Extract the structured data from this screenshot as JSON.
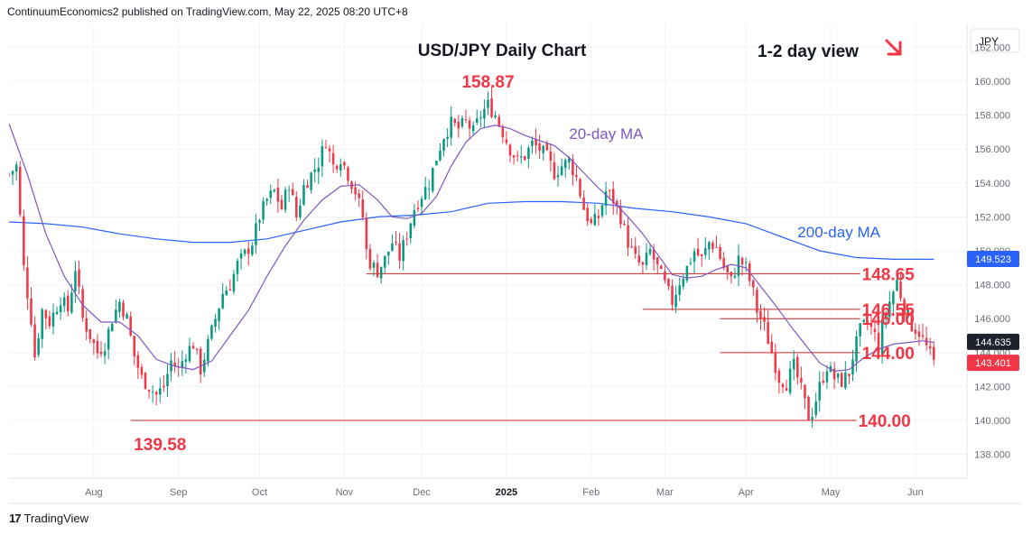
{
  "header": {
    "publisher": "ContinuumEconomics2 published on TradingView.com, May 22, 2025 08:20 UTC+8"
  },
  "footer": {
    "brand": "TradingView",
    "logo_text": "17"
  },
  "colors": {
    "up": "#089981",
    "down": "#f23645",
    "ma20": "#7e57c2",
    "ma200": "#2962ff",
    "level_text": "#f23645",
    "level_line": "#e06a6a",
    "arrow": "#f23645",
    "grid": "#f0f3fa",
    "axis_text": "#6a6d78"
  },
  "chart_data": {
    "type": "candlestick",
    "title": "USD/JPY Daily Chart",
    "subtitle": "1-2 day view",
    "view_arrow": "down-right-arrow",
    "currency": "JPY",
    "ylim": [
      136.6,
      163.4
    ],
    "yticks": [
      138,
      140,
      142,
      144,
      146,
      148,
      150,
      152,
      154,
      156,
      158,
      160,
      162
    ],
    "ytick_labels": [
      "138.000",
      "140.000",
      "142.000",
      "144.000",
      "146.000",
      "148.000",
      "150.000",
      "152.000",
      "154.000",
      "156.000",
      "158.000",
      "160.000",
      "162.000"
    ],
    "xticks": [
      {
        "label": "Aug",
        "x": 23
      },
      {
        "label": "Sep",
        "x": 46
      },
      {
        "label": "Oct",
        "x": 68
      },
      {
        "label": "Nov",
        "x": 91
      },
      {
        "label": "Dec",
        "x": 112
      },
      {
        "label": "2025",
        "x": 135
      },
      {
        "label": "Feb",
        "x": 158
      },
      {
        "label": "Mar",
        "x": 178
      },
      {
        "label": "Apr",
        "x": 200
      },
      {
        "label": "May",
        "x": 223
      },
      {
        "label": "Jun",
        "x": 246
      }
    ],
    "xlim": [
      0,
      260
    ],
    "price_labels": [
      {
        "name": "ma200-price-tag",
        "value": "149.523",
        "y": 149.523,
        "color": "#2962ff"
      },
      {
        "name": "ma20-price-tag",
        "value": "144.635",
        "y": 144.635,
        "color": "#1e222d"
      },
      {
        "name": "last-price-tag",
        "value": "143.401",
        "y": 143.401,
        "color": "#f23645"
      }
    ],
    "levels": [
      {
        "label": "148.65",
        "value": 148.65,
        "x0": 97,
        "x1": 231
      },
      {
        "label": "146.55",
        "value": 146.55,
        "x0": 172,
        "x1": 231
      },
      {
        "label": "146.00",
        "value": 146.0,
        "x0": 193,
        "x1": 231
      },
      {
        "label": "144.00",
        "value": 144.0,
        "x0": 193,
        "x1": 231
      },
      {
        "label": "140.00",
        "value": 140.0,
        "x0": 33,
        "x1": 230
      }
    ],
    "annotations": [
      {
        "label": "158.87",
        "value": 158.87,
        "x": 130
      },
      {
        "label": "139.58",
        "value": 139.58,
        "x": 41
      },
      {
        "label": "20-day MA",
        "x": 152,
        "value": 156.6
      },
      {
        "label": "200-day MA",
        "x": 214,
        "value": 150.8
      }
    ],
    "ohlc_knots": [
      [
        0,
        154.5
      ],
      [
        2,
        155.0
      ],
      [
        4,
        149.0
      ],
      [
        6,
        146.0
      ],
      [
        7,
        143.8
      ],
      [
        9,
        146.5
      ],
      [
        11,
        145.8
      ],
      [
        14,
        147.2
      ],
      [
        16,
        146.5
      ],
      [
        18,
        149.0
      ],
      [
        20,
        146.0
      ],
      [
        22,
        145.0
      ],
      [
        24,
        144.0
      ],
      [
        26,
        144.5
      ],
      [
        28,
        146.0
      ],
      [
        30,
        147.0
      ],
      [
        32,
        146.0
      ],
      [
        34,
        143.8
      ],
      [
        36,
        142.5
      ],
      [
        38,
        142.0
      ],
      [
        40,
        141.5
      ],
      [
        42,
        142.0
      ],
      [
        44,
        143.5
      ],
      [
        46,
        143.0
      ],
      [
        48,
        144.0
      ],
      [
        50,
        144.5
      ],
      [
        52,
        143.0
      ],
      [
        54,
        144.5
      ],
      [
        56,
        146.0
      ],
      [
        58,
        147.5
      ],
      [
        60,
        148.0
      ],
      [
        62,
        149.2
      ],
      [
        64,
        149.8
      ],
      [
        66,
        150.5
      ],
      [
        68,
        152.0
      ],
      [
        70,
        153.0
      ],
      [
        72,
        153.5
      ],
      [
        74,
        152.5
      ],
      [
        76,
        154.0
      ],
      [
        78,
        152.0
      ],
      [
        80,
        153.8
      ],
      [
        82,
        154.5
      ],
      [
        84,
        155.2
      ],
      [
        86,
        156.5
      ],
      [
        88,
        155.0
      ],
      [
        90,
        155.5
      ],
      [
        92,
        154.5
      ],
      [
        94,
        153.5
      ],
      [
        96,
        152.0
      ],
      [
        97,
        150.0
      ],
      [
        98,
        149.3
      ],
      [
        100,
        148.8
      ],
      [
        102,
        149.5
      ],
      [
        104,
        150.5
      ],
      [
        106,
        149.6
      ],
      [
        108,
        151.0
      ],
      [
        110,
        152.5
      ],
      [
        112,
        153.3
      ],
      [
        114,
        154.0
      ],
      [
        116,
        155.5
      ],
      [
        118,
        156.8
      ],
      [
        120,
        157.5
      ],
      [
        122,
        157.2
      ],
      [
        124,
        157.6
      ],
      [
        126,
        157.0
      ],
      [
        128,
        158.0
      ],
      [
        130,
        158.6
      ],
      [
        132,
        158.0
      ],
      [
        134,
        157.0
      ],
      [
        136,
        156.0
      ],
      [
        138,
        155.3
      ],
      [
        140,
        155.6
      ],
      [
        142,
        156.3
      ],
      [
        144,
        156.0
      ],
      [
        146,
        155.5
      ],
      [
        148,
        154.6
      ],
      [
        150,
        155.0
      ],
      [
        152,
        155.3
      ],
      [
        154,
        154.3
      ],
      [
        156,
        152.5
      ],
      [
        158,
        151.5
      ],
      [
        160,
        152.0
      ],
      [
        162,
        153.5
      ],
      [
        164,
        153.0
      ],
      [
        166,
        152.0
      ],
      [
        168,
        150.5
      ],
      [
        170,
        149.5
      ],
      [
        172,
        149.0
      ],
      [
        174,
        150.0
      ],
      [
        176,
        149.0
      ],
      [
        178,
        148.0
      ],
      [
        180,
        147.0
      ],
      [
        182,
        148.2
      ],
      [
        184,
        149.0
      ],
      [
        186,
        150.0
      ],
      [
        188,
        149.5
      ],
      [
        190,
        150.5
      ],
      [
        192,
        150.2
      ],
      [
        194,
        149.0
      ],
      [
        196,
        148.2
      ],
      [
        198,
        149.5
      ],
      [
        200,
        149.0
      ],
      [
        202,
        147.5
      ],
      [
        203,
        146.5
      ],
      [
        205,
        145.5
      ],
      [
        207,
        144.0
      ],
      [
        209,
        142.5
      ],
      [
        211,
        142.2
      ],
      [
        213,
        143.2
      ],
      [
        215,
        141.8
      ],
      [
        217,
        140.2
      ],
      [
        218,
        140.5
      ],
      [
        220,
        142.0
      ],
      [
        222,
        143.2
      ],
      [
        224,
        142.5
      ],
      [
        226,
        142.3
      ],
      [
        228,
        142.8
      ],
      [
        229,
        143.8
      ],
      [
        231,
        145.3
      ],
      [
        233,
        145.8
      ],
      [
        235,
        145.0
      ],
      [
        236,
        144.3
      ],
      [
        237,
        145.6
      ],
      [
        239,
        147.0
      ],
      [
        241,
        148.2
      ],
      [
        243,
        146.6
      ],
      [
        245,
        145.6
      ],
      [
        247,
        145.2
      ],
      [
        249,
        144.3
      ],
      [
        251,
        143.4
      ]
    ],
    "ma20_points": [
      [
        0,
        157.5
      ],
      [
        5,
        154.5
      ],
      [
        10,
        151.0
      ],
      [
        15,
        148.5
      ],
      [
        20,
        146.8
      ],
      [
        25,
        145.8
      ],
      [
        30,
        145.8
      ],
      [
        35,
        145.0
      ],
      [
        40,
        143.6
      ],
      [
        45,
        143.2
      ],
      [
        50,
        143.0
      ],
      [
        55,
        143.5
      ],
      [
        60,
        145.0
      ],
      [
        65,
        146.5
      ],
      [
        70,
        148.5
      ],
      [
        75,
        150.3
      ],
      [
        80,
        151.8
      ],
      [
        85,
        153.0
      ],
      [
        90,
        153.8
      ],
      [
        95,
        153.9
      ],
      [
        100,
        153.0
      ],
      [
        104,
        152.0
      ],
      [
        108,
        151.9
      ],
      [
        112,
        152.2
      ],
      [
        116,
        153.2
      ],
      [
        120,
        155.0
      ],
      [
        124,
        156.4
      ],
      [
        128,
        157.2
      ],
      [
        132,
        157.4
      ],
      [
        136,
        157.2
      ],
      [
        140,
        156.8
      ],
      [
        144,
        156.5
      ],
      [
        148,
        156.2
      ],
      [
        152,
        155.5
      ],
      [
        156,
        154.6
      ],
      [
        160,
        153.7
      ],
      [
        164,
        152.9
      ],
      [
        168,
        152.0
      ],
      [
        172,
        151.0
      ],
      [
        176,
        149.8
      ],
      [
        180,
        148.6
      ],
      [
        184,
        148.4
      ],
      [
        188,
        148.5
      ],
      [
        192,
        148.9
      ],
      [
        196,
        149.2
      ],
      [
        200,
        149.0
      ],
      [
        204,
        147.9
      ],
      [
        208,
        146.8
      ],
      [
        212,
        145.6
      ],
      [
        216,
        144.5
      ],
      [
        220,
        143.4
      ],
      [
        224,
        142.9
      ],
      [
        228,
        143.0
      ],
      [
        232,
        143.7
      ],
      [
        236,
        144.2
      ],
      [
        240,
        144.5
      ],
      [
        244,
        144.6
      ],
      [
        248,
        144.7
      ],
      [
        251,
        144.6
      ]
    ],
    "ma200_points": [
      [
        0,
        151.7
      ],
      [
        10,
        151.6
      ],
      [
        20,
        151.4
      ],
      [
        30,
        151.0
      ],
      [
        40,
        150.7
      ],
      [
        50,
        150.5
      ],
      [
        60,
        150.5
      ],
      [
        70,
        150.7
      ],
      [
        80,
        151.2
      ],
      [
        90,
        151.7
      ],
      [
        100,
        152.0
      ],
      [
        110,
        152.1
      ],
      [
        120,
        152.3
      ],
      [
        130,
        152.8
      ],
      [
        140,
        152.9
      ],
      [
        150,
        152.9
      ],
      [
        160,
        152.8
      ],
      [
        170,
        152.5
      ],
      [
        180,
        152.3
      ],
      [
        190,
        152.0
      ],
      [
        200,
        151.6
      ],
      [
        210,
        150.8
      ],
      [
        220,
        150.0
      ],
      [
        230,
        149.6
      ],
      [
        240,
        149.5
      ],
      [
        251,
        149.5
      ]
    ]
  }
}
